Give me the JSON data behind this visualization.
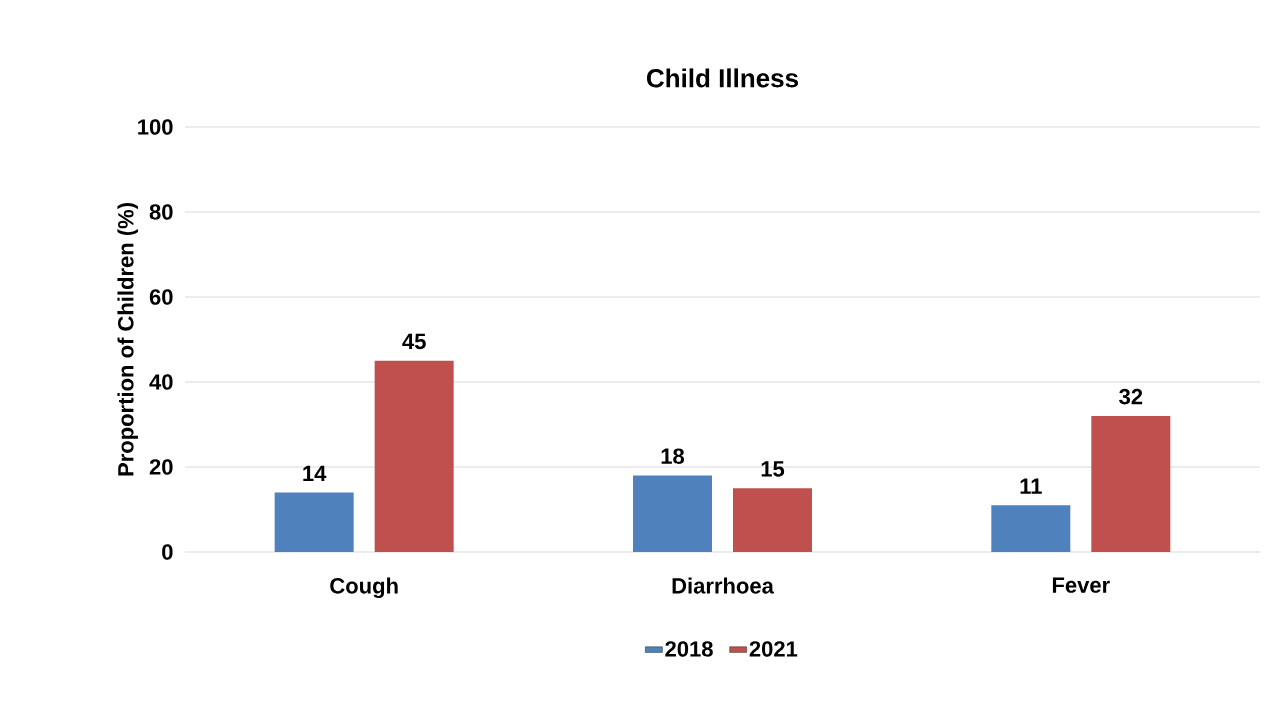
{
  "chart_data": {
    "type": "bar",
    "title": "Child Illness",
    "ylabel": "Proportion of Children (%)",
    "categories": [
      "Cough",
      "Diarrhoea",
      "Fever"
    ],
    "series": [
      {
        "name": "2018",
        "color": "#4f81bd",
        "values": [
          14,
          18,
          11
        ]
      },
      {
        "name": "2021",
        "color": "#c0504d",
        "values": [
          45,
          15,
          32
        ]
      }
    ],
    "ylim": [
      0,
      100
    ],
    "yticks": [
      0,
      20,
      40,
      60,
      80,
      100
    ],
    "grid": "y",
    "legend": "bottom",
    "data_labels": true
  }
}
